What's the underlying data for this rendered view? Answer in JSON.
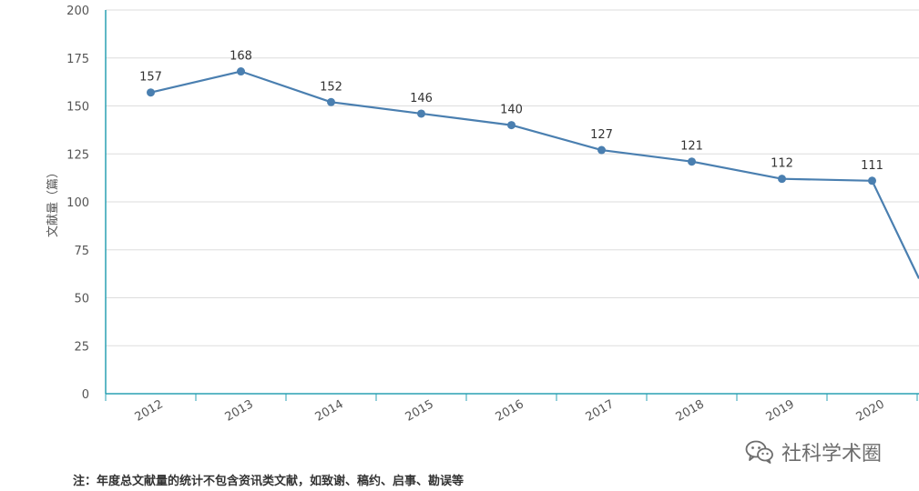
{
  "chart_data": {
    "type": "line",
    "categories": [
      "2012",
      "2013",
      "2014",
      "2015",
      "2016",
      "2017",
      "2018",
      "2019",
      "2020"
    ],
    "values": [
      157,
      168,
      152,
      146,
      140,
      127,
      121,
      112,
      111
    ],
    "trailing_value": 62,
    "data_labels": [
      "157",
      "168",
      "152",
      "146",
      "140",
      "127",
      "121",
      "112",
      "111"
    ],
    "ylabel": "文献量（篇）",
    "ylim": [
      0,
      200
    ],
    "yticks": [
      0,
      25,
      50,
      75,
      100,
      125,
      150,
      175,
      200
    ],
    "grid": "horizontal",
    "legend": "none",
    "line_color": "#4a7fb0",
    "axis_color": "#2aa0b4"
  },
  "footnote": "注：年度总文献量的统计不包含资讯类文献，如致谢、稿约、启事、勘误等",
  "watermark": {
    "icon": "wechat-icon",
    "text": "社科学术圈"
  }
}
